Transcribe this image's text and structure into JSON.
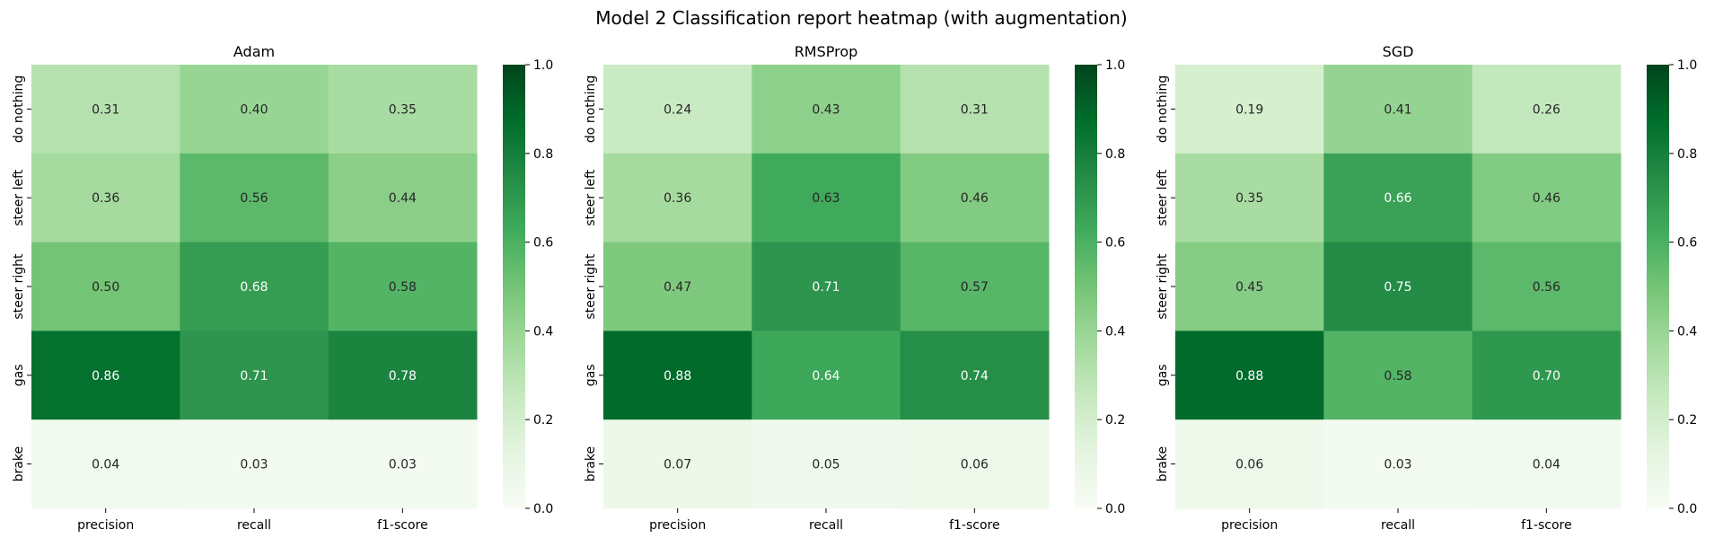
{
  "figure": {
    "title": "Model 2 Classification report heatmap (with augmentation)"
  },
  "chart_data": [
    {
      "type": "heatmap",
      "title": "Adam",
      "x_categories": [
        "precision",
        "recall",
        "f1-score"
      ],
      "y_categories": [
        "do nothing",
        "steer left",
        "steer right",
        "gas",
        "brake"
      ],
      "values": [
        [
          0.31,
          0.4,
          0.35
        ],
        [
          0.36,
          0.56,
          0.44
        ],
        [
          0.5,
          0.68,
          0.58
        ],
        [
          0.86,
          0.71,
          0.78
        ],
        [
          0.04,
          0.03,
          0.03
        ]
      ],
      "value_labels": [
        [
          "0.31",
          "0.40",
          "0.35"
        ],
        [
          "0.36",
          "0.56",
          "0.44"
        ],
        [
          "0.50",
          "0.68",
          "0.58"
        ],
        [
          "0.86",
          "0.71",
          "0.78"
        ],
        [
          "0.04",
          "0.03",
          "0.03"
        ]
      ],
      "colormap": "Greens",
      "vmin": 0.0,
      "vmax": 1.0,
      "colorbar_ticks": [
        "0.0",
        "0.2",
        "0.4",
        "0.6",
        "0.8",
        "1.0"
      ],
      "colorbar_placement": "right",
      "grid": false
    },
    {
      "type": "heatmap",
      "title": "RMSProp",
      "x_categories": [
        "precision",
        "recall",
        "f1-score"
      ],
      "y_categories": [
        "do nothing",
        "steer left",
        "steer right",
        "gas",
        "brake"
      ],
      "values": [
        [
          0.24,
          0.43,
          0.31
        ],
        [
          0.36,
          0.63,
          0.46
        ],
        [
          0.47,
          0.71,
          0.57
        ],
        [
          0.88,
          0.64,
          0.74
        ],
        [
          0.07,
          0.05,
          0.06
        ]
      ],
      "value_labels": [
        [
          "0.24",
          "0.43",
          "0.31"
        ],
        [
          "0.36",
          "0.63",
          "0.46"
        ],
        [
          "0.47",
          "0.71",
          "0.57"
        ],
        [
          "0.88",
          "0.64",
          "0.74"
        ],
        [
          "0.07",
          "0.05",
          "0.06"
        ]
      ],
      "colormap": "Greens",
      "vmin": 0.0,
      "vmax": 1.0,
      "colorbar_ticks": [
        "0.0",
        "0.2",
        "0.4",
        "0.6",
        "0.8",
        "1.0"
      ],
      "colorbar_placement": "right",
      "grid": false
    },
    {
      "type": "heatmap",
      "title": "SGD",
      "x_categories": [
        "precision",
        "recall",
        "f1-score"
      ],
      "y_categories": [
        "do nothing",
        "steer left",
        "steer right",
        "gas",
        "brake"
      ],
      "values": [
        [
          0.19,
          0.41,
          0.26
        ],
        [
          0.35,
          0.66,
          0.46
        ],
        [
          0.45,
          0.75,
          0.56
        ],
        [
          0.88,
          0.58,
          0.7
        ],
        [
          0.06,
          0.03,
          0.04
        ]
      ],
      "value_labels": [
        [
          "0.19",
          "0.41",
          "0.26"
        ],
        [
          "0.35",
          "0.66",
          "0.46"
        ],
        [
          "0.45",
          "0.75",
          "0.56"
        ],
        [
          "0.88",
          "0.58",
          "0.70"
        ],
        [
          "0.06",
          "0.03",
          "0.04"
        ]
      ],
      "colormap": "Greens",
      "vmin": 0.0,
      "vmax": 1.0,
      "colorbar_ticks": [
        "0.0",
        "0.2",
        "0.4",
        "0.6",
        "0.8",
        "1.0"
      ],
      "colorbar_placement": "right",
      "grid": false
    }
  ]
}
